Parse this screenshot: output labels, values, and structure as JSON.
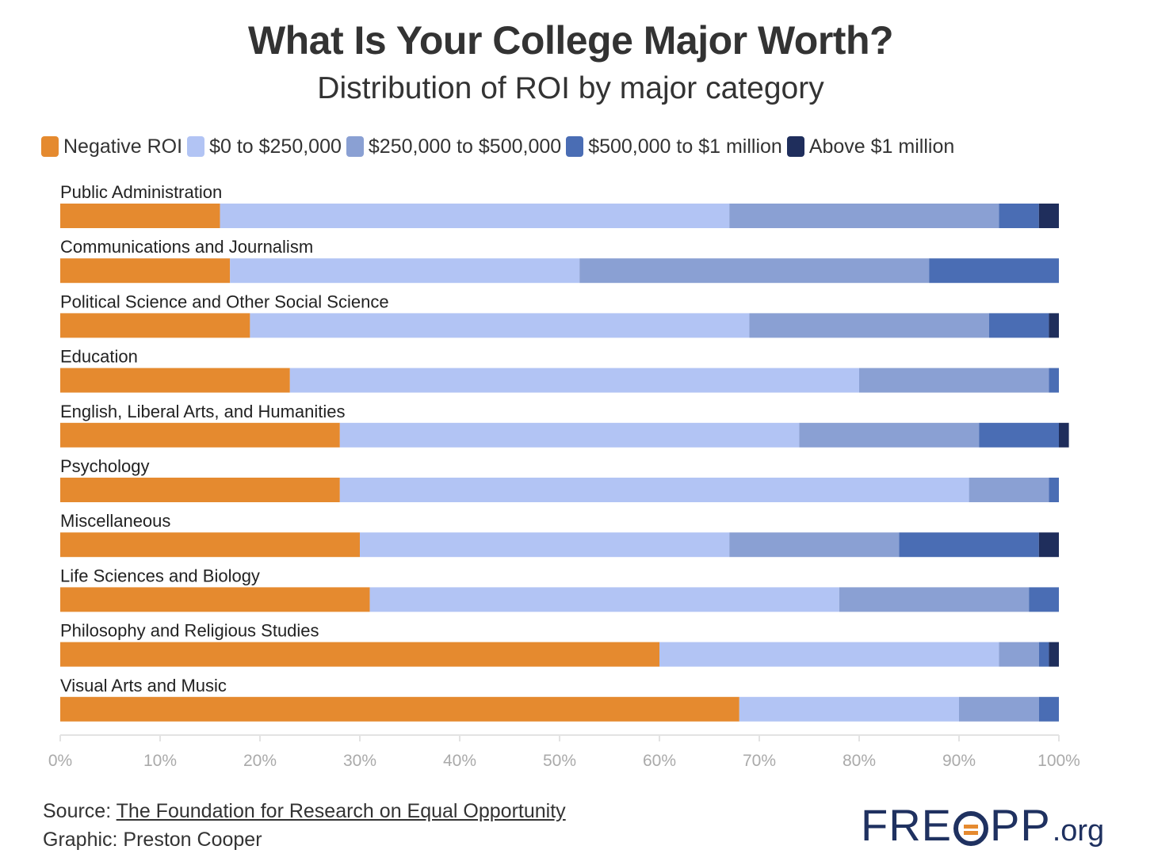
{
  "header": {
    "title": "What Is Your College Major Worth?",
    "subtitle": "Distribution of ROI by major category"
  },
  "legend": [
    {
      "label": "Negative ROI",
      "color": "#e58a2f"
    },
    {
      "label": "$0 to $250,000",
      "color": "#b2c4f4"
    },
    {
      "label": "$250,000 to $500,000",
      "color": "#8aa0d3"
    },
    {
      "label": "$500,000 to $1 million",
      "color": "#4a6db4"
    },
    {
      "label": "Above $1 million",
      "color": "#1f2e5c"
    }
  ],
  "chart_data": {
    "type": "bar",
    "orientation": "horizontal",
    "stacked": true,
    "title": "What Is Your College Major Worth?",
    "subtitle": "Distribution of ROI by major category",
    "categories": [
      "Public Administration",
      "Communications and Journalism",
      "Political Science and Other Social Science",
      "Education",
      "English, Liberal Arts, and Humanities",
      "Psychology",
      "Miscellaneous",
      "Life Sciences and Biology",
      "Philosophy and Religious Studies",
      "Visual Arts and Music"
    ],
    "series": [
      {
        "name": "Negative ROI",
        "color": "#e58a2f",
        "values": [
          16,
          17,
          19,
          23,
          28,
          28,
          30,
          31,
          60,
          68
        ]
      },
      {
        "name": "$0 to $250,000",
        "color": "#b2c4f4",
        "values": [
          51,
          35,
          50,
          57,
          46,
          63,
          37,
          47,
          34,
          22
        ]
      },
      {
        "name": "$250,000 to $500,000",
        "color": "#8aa0d3",
        "values": [
          27,
          35,
          24,
          19,
          18,
          8,
          17,
          19,
          4,
          8
        ]
      },
      {
        "name": "$500,000 to $1 million",
        "color": "#4a6db4",
        "values": [
          4,
          13,
          6,
          1,
          8,
          1,
          14,
          3,
          1,
          2
        ]
      },
      {
        "name": "Above $1 million",
        "color": "#1f2e5c",
        "values": [
          2,
          0,
          1,
          0,
          1,
          0,
          2,
          0,
          1,
          0
        ]
      }
    ],
    "xlim": [
      0,
      100
    ],
    "x_ticks": [
      "0%",
      "10%",
      "20%",
      "30%",
      "40%",
      "50%",
      "60%",
      "70%",
      "80%",
      "90%",
      "100%"
    ],
    "xlabel": "",
    "ylabel": "",
    "grid": false,
    "legend_position": "top-left"
  },
  "footer": {
    "source_prefix": "Source: ",
    "source_link": "The Foundation for Research on Equal Opportunity",
    "graphic": "Graphic: Preston Cooper",
    "logo_left": "FRE",
    "logo_right": "PP",
    "logo_suffix": ".org"
  }
}
